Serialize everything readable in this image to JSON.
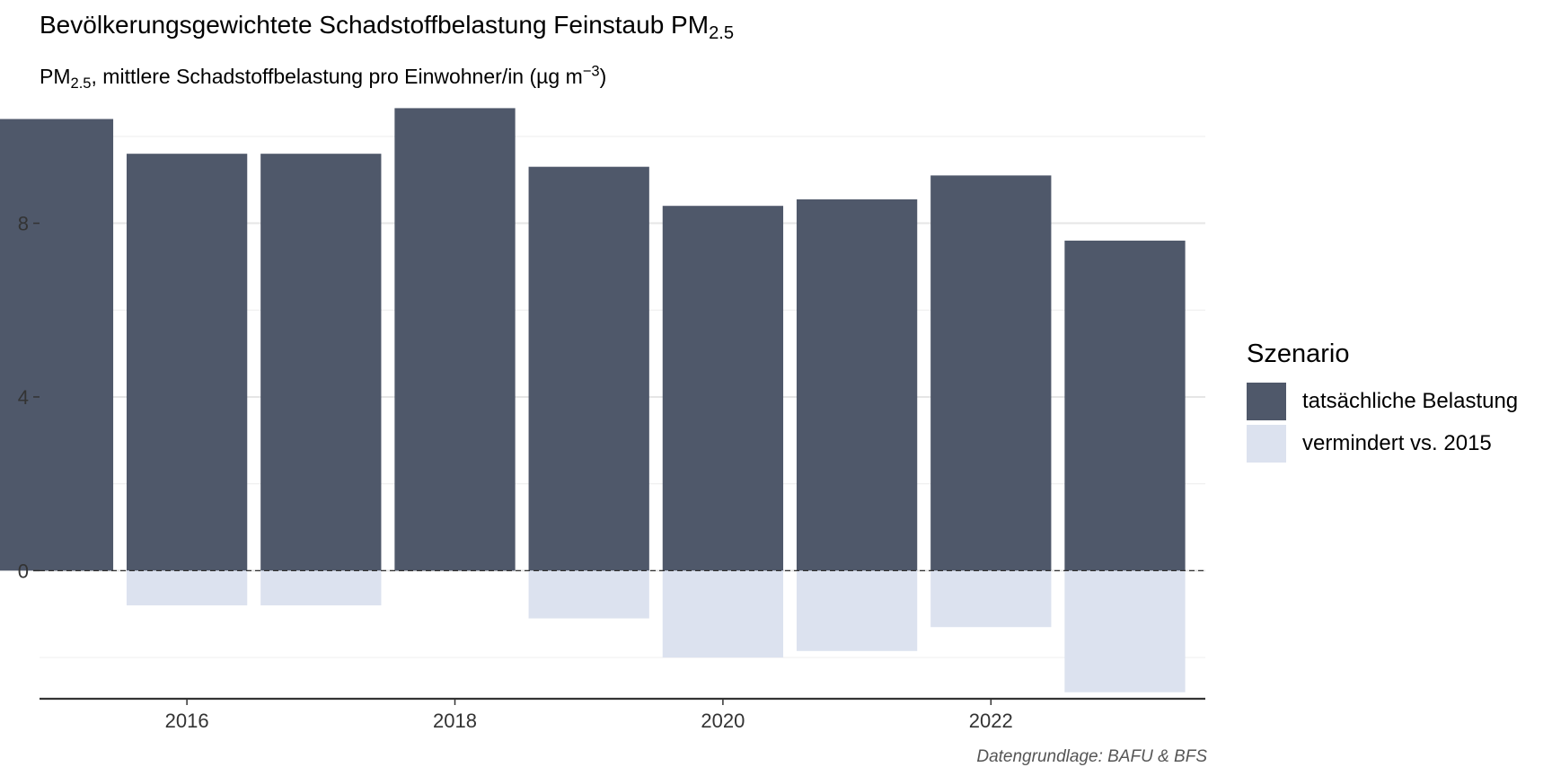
{
  "chart_data": {
    "type": "bar",
    "title": "Bevölkerungsgewichtete Schadstoffbelastung Feinstaub PM",
    "title_subscript": "2.5",
    "subtitle_prefix": "PM",
    "subtitle_subscript": "2.5",
    "subtitle_main": ", mittlere Schadstoffbelastung pro Einwohner/in (µg m",
    "subtitle_superscript": "−3",
    "subtitle_suffix": ")",
    "caption": "Datengrundlage: BAFU & BFS",
    "x": [
      2015,
      2016,
      2017,
      2018,
      2019,
      2020,
      2021,
      2022,
      2023
    ],
    "x_tick_labels": [
      "2016",
      "2018",
      "2020",
      "2022"
    ],
    "x_ticks": [
      2016,
      2018,
      2020,
      2022
    ],
    "y_tick_labels": [
      "0",
      "4",
      "8"
    ],
    "y_ticks": [
      0,
      4,
      8
    ],
    "ylim": [
      -2.95,
      10.7
    ],
    "xlim": [
      2014.9,
      2023.6
    ],
    "legend_title": "Szenario",
    "legend_position": "right",
    "zero_line": "dashed",
    "grid": true,
    "series": [
      {
        "name": "tatsächliche Belastung",
        "color": "#4f586a",
        "values": [
          10.4,
          9.6,
          9.6,
          10.65,
          9.3,
          8.4,
          8.55,
          9.1,
          7.6
        ]
      },
      {
        "name": "vermindert vs. 2015",
        "color": "#dce2ef",
        "values": [
          0,
          -0.8,
          -0.8,
          0,
          -1.1,
          -2.0,
          -1.85,
          -1.3,
          -2.8
        ]
      }
    ]
  }
}
